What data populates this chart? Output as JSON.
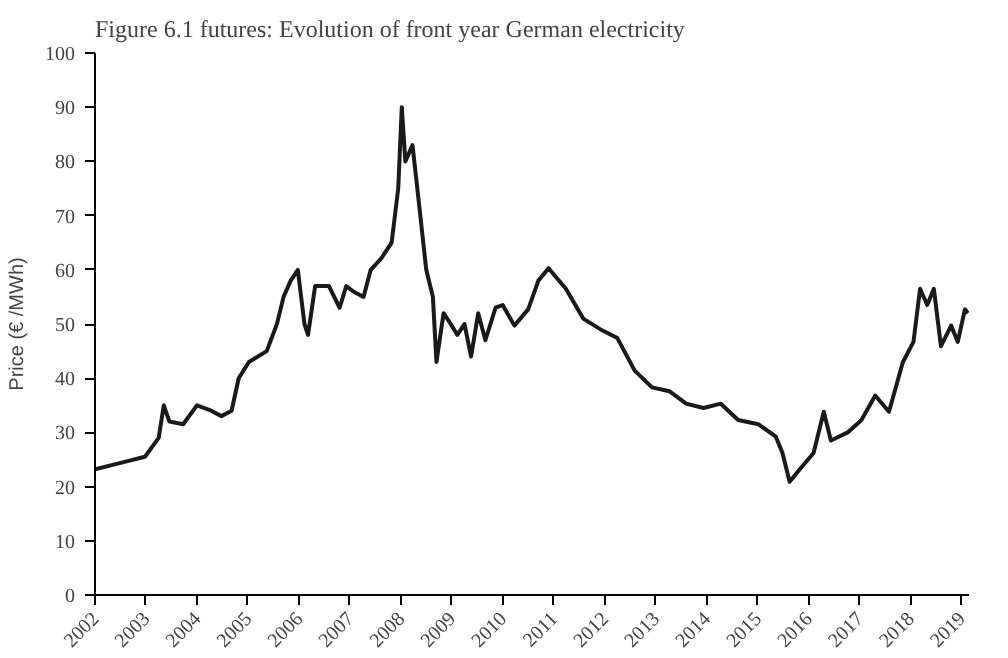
{
  "chart_data": {
    "type": "line",
    "title": "Figure 6.1  futures: Evolution of front year German electricity",
    "ylabel": "Price (€ /MWh)",
    "x": [
      2002,
      2002.64,
      2002.98,
      2003.25,
      2003.35,
      2003.46,
      2003.73,
      2004.0,
      2004.28,
      2004.48,
      2004.68,
      2004.82,
      2005.02,
      2005.37,
      2005.57,
      2005.7,
      2005.84,
      2005.98,
      2006.11,
      2006.18,
      2006.32,
      2006.59,
      2006.8,
      2006.93,
      2007.07,
      2007.27,
      2007.41,
      2007.61,
      2007.82,
      2007.95,
      2008.02,
      2008.09,
      2008.23,
      2008.36,
      2008.5,
      2008.63,
      2008.7,
      2008.84,
      2008.98,
      2009.11,
      2009.25,
      2009.38,
      2009.52,
      2009.66,
      2009.86,
      2010.0,
      2010.23,
      2010.5,
      2010.7,
      2010.9,
      2011.24,
      2011.58,
      2011.92,
      2012.25,
      2012.59,
      2012.93,
      2013.27,
      2013.6,
      2013.94,
      2014.28,
      2014.62,
      2015.02,
      2015.36,
      2015.49,
      2015.63,
      2015.83,
      2016.1,
      2016.3,
      2016.44,
      2016.77,
      2017.04,
      2017.31,
      2017.58,
      2017.85,
      2018.06,
      2018.19,
      2018.33,
      2018.46,
      2018.6,
      2018.8,
      2018.93,
      2019.07,
      2019.13
    ],
    "series": [
      {
        "color": "#1a1a1a",
        "values": [
          23.2,
          24.7,
          25.5,
          29,
          35,
          32,
          31.5,
          35,
          34,
          33,
          34,
          40,
          43,
          45,
          50,
          55,
          58,
          60,
          50,
          48,
          57,
          57,
          53,
          57,
          56,
          55,
          60,
          62,
          65,
          75,
          90,
          80,
          83,
          72,
          60,
          55,
          43,
          52,
          50,
          48,
          50,
          44,
          52,
          47,
          53,
          53.5,
          49.7,
          52.7,
          58,
          60.3,
          56.5,
          51,
          49,
          47.4,
          41.4,
          38.3,
          37.6,
          35.3,
          34.5,
          35.3,
          32.3,
          31.5,
          29.2,
          26.2,
          20.9,
          23.2,
          26.2,
          33.8,
          28.5,
          30,
          32.3,
          36.8,
          33.8,
          42.9,
          46.7,
          56.5,
          53.5,
          56.5,
          45.9,
          49.7,
          46.7,
          52.7,
          52
        ]
      }
    ],
    "xlim": [
      2002,
      2019.15
    ],
    "xticks": [
      2002,
      2003,
      2004,
      2005,
      2006,
      2007,
      2008,
      2009,
      2010,
      2011,
      2012,
      2013,
      2014,
      2015,
      2016,
      2017,
      2018,
      2019
    ],
    "ylim": [
      0,
      100
    ],
    "yticks": [
      0,
      10,
      20,
      30,
      40,
      50,
      60,
      70,
      80,
      90,
      100
    ],
    "grid": false,
    "line_style": "solid"
  }
}
